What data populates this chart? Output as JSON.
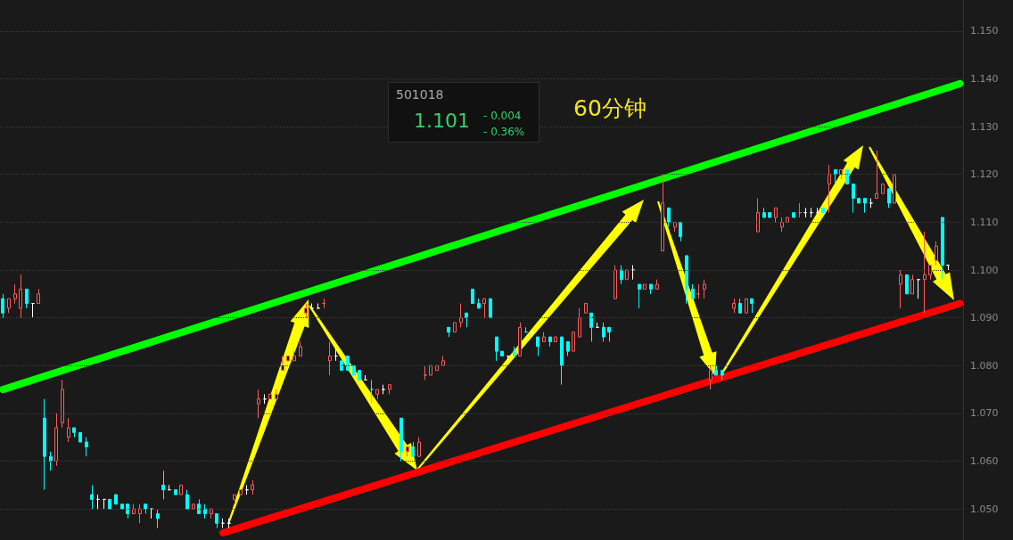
{
  "chart_data": {
    "type": "candlestick",
    "title": "60分钟",
    "annotations": [
      "501018",
      "1.101",
      "- 0.004",
      "- 0.36%"
    ],
    "categories": [
      null,
      null,
      null,
      null,
      null,
      null,
      null,
      null,
      null,
      null,
      null,
      null,
      null,
      null,
      null,
      null,
      null,
      null,
      null,
      null,
      null,
      null,
      null,
      null,
      null,
      null,
      null,
      null,
      null,
      null,
      null,
      null,
      null,
      null,
      null,
      null,
      null,
      null,
      null,
      null,
      null,
      null,
      null,
      null,
      null,
      null,
      null,
      null,
      null,
      null,
      null,
      null,
      null,
      null,
      null,
      null,
      null,
      null,
      null,
      null,
      null,
      null,
      null,
      null,
      null,
      null,
      null,
      null,
      null,
      null,
      null,
      null,
      null,
      null,
      null,
      null,
      null,
      null,
      null,
      null,
      null,
      null,
      null,
      null,
      null,
      null,
      null,
      null,
      null,
      null,
      null,
      null,
      null,
      null,
      null,
      null,
      null,
      null,
      null,
      null,
      null,
      null,
      null,
      null,
      null,
      null,
      null,
      null,
      null,
      null,
      null,
      null,
      null,
      null,
      null,
      null,
      null,
      null,
      null,
      null,
      null,
      null,
      null,
      null,
      null,
      null,
      null,
      null,
      null,
      null,
      null,
      null,
      null,
      null,
      null,
      null,
      null,
      null,
      null,
      null,
      null,
      null,
      null,
      null,
      null,
      null,
      null,
      null,
      null,
      null,
      null,
      null,
      null,
      null,
      null,
      null,
      null,
      null,
      null,
      null,
      null,
      null
    ],
    "ohlc": [
      [
        1.094,
        1.095,
        1.09,
        1.091
      ],
      [
        1.092,
        1.094,
        1.091,
        1.094
      ],
      [
        1.094,
        1.097,
        1.093,
        1.095
      ],
      [
        1.092,
        1.099,
        1.09,
        1.096
      ],
      [
        1.096,
        1.096,
        1.092,
        1.093
      ],
      [
        1.093,
        1.093,
        1.09,
        1.093
      ],
      [
        1.093,
        1.096,
        1.093,
        1.095
      ],
      [
        1.069,
        1.073,
        1.054,
        1.061
      ],
      [
        1.061,
        1.062,
        1.058,
        1.06
      ],
      [
        1.06,
        1.07,
        1.059,
        1.067
      ],
      [
        1.068,
        1.077,
        1.067,
        1.075
      ],
      [
        1.065,
        1.069,
        1.064,
        1.067
      ],
      [
        1.067,
        1.067,
        1.065,
        1.066
      ],
      [
        1.066,
        1.066,
        1.064,
        1.064
      ],
      [
        1.064,
        1.065,
        1.061,
        1.063
      ],
      [
        1.053,
        1.055,
        1.05,
        1.052
      ],
      [
        1.052,
        1.053,
        1.05,
        1.052
      ],
      [
        1.052,
        1.052,
        1.05,
        1.052
      ],
      [
        1.052,
        1.052,
        1.05,
        1.05
      ],
      [
        1.053,
        1.053,
        1.051,
        1.051
      ],
      [
        1.051,
        1.051,
        1.05,
        1.05
      ],
      [
        1.051,
        1.051,
        1.048,
        1.049
      ],
      [
        1.049,
        1.051,
        1.049,
        1.05
      ],
      [
        1.049,
        1.051,
        1.047,
        1.05
      ],
      [
        1.051,
        1.051,
        1.049,
        1.05
      ],
      [
        1.05,
        1.05,
        1.048,
        1.05
      ],
      [
        1.049,
        1.05,
        1.046,
        1.048
      ],
      [
        1.055,
        1.058,
        1.052,
        1.054
      ],
      [
        1.054,
        1.055,
        1.054,
        1.054
      ],
      [
        1.054,
        1.054,
        1.053,
        1.053
      ],
      [
        1.053,
        1.055,
        1.053,
        1.055
      ],
      [
        1.053,
        1.054,
        1.05,
        1.05
      ],
      [
        1.05,
        1.051,
        1.05,
        1.051
      ],
      [
        1.051,
        1.052,
        1.049,
        1.049
      ],
      [
        1.05,
        1.051,
        1.048,
        1.049
      ],
      [
        1.049,
        1.05,
        1.048,
        1.05
      ],
      [
        1.049,
        1.049,
        1.046,
        1.047
      ],
      [
        1.047,
        1.048,
        1.046,
        1.047
      ],
      [
        1.047,
        1.048,
        1.046,
        1.047
      ],
      [
        1.052,
        1.053,
        1.051,
        1.053
      ],
      [
        1.053,
        1.054,
        1.053,
        1.054
      ],
      [
        1.054,
        1.055,
        1.053,
        1.054
      ],
      [
        1.054,
        1.056,
        1.053,
        1.055
      ],
      [
        1.072,
        1.075,
        1.069,
        1.073
      ],
      [
        1.073,
        1.074,
        1.072,
        1.073
      ],
      [
        1.073,
        1.074,
        1.073,
        1.074
      ],
      [
        1.073,
        1.075,
        1.073,
        1.074
      ],
      [
        1.079,
        1.082,
        1.079,
        1.08
      ],
      [
        1.081,
        1.082,
        1.081,
        1.082
      ],
      [
        1.081,
        1.083,
        1.081,
        1.082
      ],
      [
        1.082,
        1.085,
        1.082,
        1.084
      ],
      [
        1.091,
        1.093,
        1.09,
        1.092
      ],
      [
        1.092,
        1.093,
        1.092,
        1.092
      ],
      [
        1.092,
        1.093,
        1.092,
        1.092
      ],
      [
        1.093,
        1.094,
        1.092,
        1.093
      ],
      [
        1.081,
        1.085,
        1.078,
        1.082
      ],
      [
        1.082,
        1.084,
        1.081,
        1.082
      ],
      [
        1.081,
        1.081,
        1.079,
        1.079
      ],
      [
        1.082,
        1.082,
        1.079,
        1.079
      ],
      [
        1.08,
        1.08,
        1.078,
        1.078
      ],
      [
        1.079,
        1.079,
        1.077,
        1.077
      ],
      [
        1.077,
        1.078,
        1.077,
        1.077
      ],
      [
        1.075,
        1.077,
        1.072,
        1.075
      ],
      [
        1.074,
        1.075,
        1.073,
        1.075
      ],
      [
        1.075,
        1.076,
        1.074,
        1.075
      ],
      [
        1.075,
        1.076,
        1.074,
        1.076
      ],
      null,
      [
        1.069,
        1.069,
        1.06,
        1.062
      ],
      [
        1.062,
        1.063,
        1.061,
        1.063
      ],
      [
        1.063,
        1.064,
        1.061,
        1.061
      ],
      [
        1.061,
        1.065,
        1.061,
        1.064
      ],
      [
        1.078,
        1.08,
        1.077,
        1.078
      ],
      [
        1.078,
        1.08,
        1.078,
        1.08
      ],
      [
        1.079,
        1.08,
        1.079,
        1.08
      ],
      [
        1.08,
        1.082,
        1.08,
        1.081
      ],
      [
        1.088,
        1.088,
        1.086,
        1.087
      ],
      [
        1.087,
        1.089,
        1.087,
        1.089
      ],
      [
        1.089,
        1.093,
        1.088,
        1.09
      ],
      [
        1.091,
        1.091,
        1.088,
        1.09
      ],
      [
        1.096,
        1.096,
        1.093,
        1.093
      ],
      [
        1.093,
        1.094,
        1.092,
        1.092
      ],
      [
        1.093,
        1.094,
        1.09,
        1.094
      ],
      [
        1.094,
        1.094,
        1.09,
        1.09
      ],
      [
        1.086,
        1.086,
        1.081,
        1.083
      ],
      [
        1.083,
        1.083,
        1.082,
        1.082
      ],
      [
        1.082,
        1.082,
        1.081,
        1.082
      ],
      [
        1.083,
        1.084,
        1.082,
        1.082
      ],
      [
        1.082,
        1.089,
        1.082,
        1.088
      ],
      [
        1.087,
        1.088,
        1.087,
        1.087
      ],
      [
        1.087,
        1.087,
        1.086,
        1.087
      ],
      [
        1.086,
        1.086,
        1.082,
        1.084
      ],
      [
        1.085,
        1.087,
        1.085,
        1.086
      ],
      [
        1.086,
        1.086,
        1.084,
        1.085
      ],
      [
        1.085,
        1.086,
        1.085,
        1.086
      ],
      [
        1.086,
        1.086,
        1.076,
        1.08
      ],
      [
        1.085,
        1.085,
        1.082,
        1.083
      ],
      [
        1.083,
        1.087,
        1.083,
        1.087
      ],
      [
        1.086,
        1.092,
        1.086,
        1.09
      ],
      [
        1.091,
        1.093,
        1.091,
        1.093
      ],
      [
        1.091,
        1.091,
        1.085,
        1.088
      ],
      [
        1.088,
        1.089,
        1.088,
        1.088
      ],
      [
        1.088,
        1.089,
        1.085,
        1.086
      ],
      [
        1.088,
        1.088,
        1.085,
        1.087
      ],
      [
        1.094,
        1.101,
        1.094,
        1.1
      ],
      [
        1.1,
        1.101,
        1.097,
        1.098
      ],
      [
        1.098,
        1.1,
        1.098,
        1.1
      ],
      [
        1.1,
        1.101,
        1.098,
        1.1
      ],
      [
        1.097,
        1.097,
        1.092,
        1.096
      ],
      [
        1.096,
        1.097,
        1.096,
        1.097
      ],
      [
        1.097,
        1.097,
        1.095,
        1.096
      ],
      [
        1.096,
        1.098,
        1.096,
        1.097
      ],
      [
        1.104,
        1.12,
        1.104,
        1.114
      ],
      [
        1.113,
        1.113,
        1.109,
        1.11
      ],
      [
        1.109,
        1.11,
        1.108,
        1.11
      ],
      [
        1.11,
        1.11,
        1.106,
        1.107
      ],
      [
        1.103,
        1.103,
        1.093,
        1.096
      ],
      [
        1.096,
        1.097,
        1.094,
        1.094
      ],
      [
        1.095,
        1.097,
        1.094,
        1.095
      ],
      [
        1.096,
        1.098,
        1.094,
        1.097
      ],
      [
        1.077,
        1.08,
        1.075,
        1.079
      ],
      [
        1.079,
        1.08,
        1.078,
        1.078
      ],
      [
        1.079,
        1.079,
        1.077,
        1.078
      ],
      null,
      [
        1.092,
        1.094,
        1.091,
        1.093
      ],
      [
        1.093,
        1.094,
        1.091,
        1.091
      ],
      [
        1.091,
        1.094,
        1.091,
        1.094
      ],
      [
        1.094,
        1.094,
        1.091,
        1.093
      ],
      [
        1.108,
        1.115,
        1.108,
        1.112
      ],
      [
        1.112,
        1.113,
        1.111,
        1.111
      ],
      [
        1.112,
        1.112,
        1.111,
        1.111
      ],
      [
        1.111,
        1.113,
        1.11,
        1.113
      ],
      [
        1.109,
        1.111,
        1.108,
        1.11
      ],
      [
        1.11,
        1.111,
        1.11,
        1.111
      ],
      [
        1.112,
        1.112,
        1.111,
        1.111
      ],
      [
        1.112,
        1.114,
        1.111,
        1.112
      ],
      [
        1.112,
        1.113,
        1.111,
        1.112
      ],
      [
        1.112,
        1.113,
        1.111,
        1.112
      ],
      [
        1.112,
        1.113,
        1.111,
        1.112
      ],
      [
        1.113,
        1.113,
        1.112,
        1.112
      ],
      [
        1.118,
        1.122,
        1.112,
        1.12
      ],
      [
        1.121,
        1.121,
        1.118,
        1.12
      ],
      [
        1.12,
        1.121,
        1.119,
        1.121
      ],
      [
        1.121,
        1.121,
        1.118,
        1.118
      ],
      [
        1.118,
        1.118,
        1.112,
        1.115
      ],
      [
        1.115,
        1.115,
        1.114,
        1.114
      ],
      [
        1.115,
        1.115,
        1.112,
        1.114
      ],
      [
        1.114,
        1.115,
        1.113,
        1.114
      ],
      [
        1.115,
        1.125,
        1.115,
        1.116
      ],
      [
        1.116,
        1.118,
        1.116,
        1.118
      ],
      [
        1.117,
        1.117,
        1.113,
        1.114
      ],
      [
        1.114,
        1.12,
        1.114,
        1.12
      ],
      [
        1.097,
        1.1,
        1.092,
        1.099
      ],
      [
        1.099,
        1.099,
        1.095,
        1.095
      ],
      [
        1.095,
        1.099,
        1.095,
        1.098
      ],
      [
        1.098,
        1.098,
        1.094,
        1.098
      ],
      [
        1.098,
        1.108,
        1.091,
        1.099
      ],
      [
        1.099,
        1.101,
        1.098,
        1.101
      ],
      [
        1.102,
        1.106,
        1.101,
        1.105
      ],
      [
        1.111,
        1.111,
        1.098,
        1.101
      ],
      [
        1.101,
        1.101,
        1.1,
        1.101
      ],
      null,
      null
    ],
    "colors": [
      "#00ffff",
      "#ff5b5b",
      "#ff5b5b",
      "#ff5b5b",
      "#00ffff",
      "#ffffff",
      "#ff5b5b",
      "#00ffff",
      "#00ffff",
      "#ff5b5b",
      "#ff5b5b",
      "#ff5b5b",
      "#00ffff",
      "#00ffff",
      "#00ffff",
      "#00ffff",
      "#ffffff",
      "#ffffff",
      "#00ffff",
      "#00ffff",
      "#00ffff",
      "#00ffff",
      "#ff5b5b",
      "#ff5b5b",
      "#00ffff",
      "#ffffff",
      "#00ffff",
      "#00ffff",
      "#ffffff",
      "#00ffff",
      "#ff5b5b",
      "#00ffff",
      "#ff5b5b",
      "#00ffff",
      "#00ffff",
      "#ff5b5b",
      "#00ffff",
      "#ffffff",
      "#ffffff",
      "#ff5b5b",
      "#ff5b5b",
      "#ffffff",
      "#ff5b5b",
      "#ff5b5b",
      "#ffffff",
      "#ff5b5b",
      "#ff5b5b",
      "#ff5b5b",
      "#ff5b5b",
      "#ff5b5b",
      "#ff5b5b",
      "#ff5b5b",
      "#ffffff",
      "#ffffff",
      "#ff5b5b",
      "#ff5b5b",
      "#ffffff",
      "#00ffff",
      "#00ffff",
      "#00ffff",
      "#00ffff",
      "#ffffff",
      "#00ffff",
      "#ff5b5b",
      "#ffffff",
      "#ff5b5b",
      null,
      "#00ffff",
      "#ff5b5b",
      "#00ffff",
      "#ff5b5b",
      "#ff5b5b",
      "#ff5b5b",
      "#ff5b5b",
      "#ff5b5b",
      "#00ffff",
      "#ff5b5b",
      "#ff5b5b",
      "#00ffff",
      "#00ffff",
      "#00ffff",
      "#ff5b5b",
      "#00ffff",
      "#00ffff",
      "#00ffff",
      "#ffffff",
      "#00ffff",
      "#ff5b5b",
      "#00ffff",
      "#ffffff",
      "#00ffff",
      "#ff5b5b",
      "#00ffff",
      "#ff5b5b",
      "#00ffff",
      "#00ffff",
      "#ff5b5b",
      "#ff5b5b",
      "#ff5b5b",
      "#00ffff",
      "#ffffff",
      "#00ffff",
      "#00ffff",
      "#ff5b5b",
      "#00ffff",
      "#ff5b5b",
      "#ffffff",
      "#00ffff",
      "#ff5b5b",
      "#00ffff",
      "#ff5b5b",
      "#ff5b5b",
      "#00ffff",
      "#ff5b5b",
      "#00ffff",
      "#00ffff",
      "#00ffff",
      "#ff5b5b",
      "#ff5b5b",
      "#ff5b5b",
      "#00ffff",
      "#00ffff",
      null,
      "#ff5b5b",
      "#00ffff",
      "#ff5b5b",
      "#00ffff",
      "#ff5b5b",
      "#00ffff",
      "#00ffff",
      "#ff5b5b",
      "#ff5b5b",
      "#ff5b5b",
      "#00ffff",
      "#ff5b5b",
      "#ffffff",
      "#ffffff",
      "#ffffff",
      "#00ffff",
      "#ff5b5b",
      "#00ffff",
      "#ff5b5b",
      "#00ffff",
      "#00ffff",
      "#00ffff",
      "#00ffff",
      "#ffffff",
      "#ff5b5b",
      "#ff5b5b",
      "#00ffff",
      "#ff5b5b",
      "#ff5b5b",
      "#00ffff",
      "#ff5b5b",
      "#ffffff",
      "#ff5b5b",
      "#ff5b5b",
      "#ff5b5b",
      "#00ffff",
      "#ffffff",
      null,
      null
    ],
    "series": [
      {
        "type": "line",
        "color": "#00ff00",
        "values": [
          1.075,
          null,
          null,
          null,
          null,
          null,
          null,
          null,
          null,
          null,
          null,
          null,
          null,
          null,
          null,
          null,
          null,
          null,
          null,
          null,
          null,
          null,
          null,
          null,
          null,
          null,
          null,
          null,
          null,
          null,
          null,
          null,
          null,
          null,
          null,
          null,
          null,
          null,
          null,
          null,
          null,
          null,
          null,
          null,
          null,
          null,
          null,
          null,
          null,
          null,
          null,
          null,
          null,
          null,
          null,
          null,
          null,
          null,
          null,
          null,
          null,
          null,
          null,
          null,
          null,
          null,
          null,
          null,
          null,
          null,
          null,
          null,
          null,
          null,
          null,
          null,
          null,
          null,
          null,
          null,
          null,
          null,
          null,
          null,
          null,
          null,
          null,
          null,
          null,
          null,
          null,
          null,
          null,
          null,
          null,
          null,
          null,
          null,
          null,
          null,
          null,
          null,
          null,
          null,
          null,
          null,
          null,
          null,
          null,
          null,
          null,
          null,
          null,
          null,
          null,
          null,
          null,
          null,
          null,
          null,
          null,
          null,
          null,
          null,
          null,
          null,
          null,
          null,
          null,
          null,
          null,
          null,
          null,
          null,
          null,
          null,
          null,
          null,
          null,
          null,
          null,
          null,
          null,
          null,
          null,
          null,
          null,
          null,
          null,
          null,
          null,
          null,
          null,
          null,
          null,
          null,
          null,
          null,
          null,
          null,
          null,
          1.139
        ]
      },
      {
        "type": "line",
        "color": "#ff0000",
        "values": [
          null,
          null,
          null,
          null,
          null,
          null,
          null,
          null,
          null,
          null,
          null,
          null,
          null,
          null,
          null,
          null,
          null,
          null,
          null,
          null,
          null,
          null,
          null,
          null,
          null,
          null,
          null,
          null,
          null,
          null,
          null,
          null,
          null,
          null,
          null,
          null,
          null,
          1.045,
          null,
          null,
          null,
          null,
          null,
          null,
          null,
          null,
          null,
          null,
          null,
          null,
          null,
          null,
          null,
          null,
          null,
          null,
          null,
          null,
          null,
          null,
          null,
          null,
          null,
          null,
          null,
          null,
          null,
          null,
          null,
          null,
          null,
          null,
          null,
          null,
          null,
          null,
          null,
          null,
          null,
          null,
          null,
          null,
          null,
          null,
          null,
          null,
          null,
          null,
          null,
          null,
          null,
          null,
          null,
          null,
          null,
          null,
          null,
          null,
          null,
          null,
          null,
          null,
          null,
          null,
          null,
          null,
          null,
          null,
          null,
          null,
          null,
          null,
          null,
          null,
          null,
          null,
          null,
          null,
          null,
          null,
          null,
          null,
          null,
          null,
          null,
          null,
          null,
          null,
          null,
          null,
          null,
          null,
          null,
          null,
          null,
          null,
          null,
          null,
          null,
          null,
          null,
          null,
          null,
          null,
          null,
          null,
          null,
          null,
          null,
          null,
          null,
          null,
          null,
          null,
          null,
          null,
          null,
          null,
          null,
          null,
          null,
          1.093
        ]
      }
    ],
    "ylim": [
      1.0435,
      1.1565
    ],
    "yticks": [
      {
        "value": 1.05,
        "label": "1.050"
      },
      {
        "value": 1.06,
        "label": "1.060"
      },
      {
        "value": 1.07,
        "label": "1.070"
      },
      {
        "value": 1.08,
        "label": "1.080"
      },
      {
        "value": 1.09,
        "label": "1.090"
      },
      {
        "value": 1.1,
        "label": "1.100"
      },
      {
        "value": 1.11,
        "label": "1.110"
      },
      {
        "value": 1.12,
        "label": "1.120"
      },
      {
        "value": 1.13,
        "label": "1.130"
      },
      {
        "value": 1.14,
        "label": "1.140"
      },
      {
        "value": 1.15,
        "label": "1.150"
      }
    ],
    "grid": "y",
    "tick_labels": "y"
  }
}
